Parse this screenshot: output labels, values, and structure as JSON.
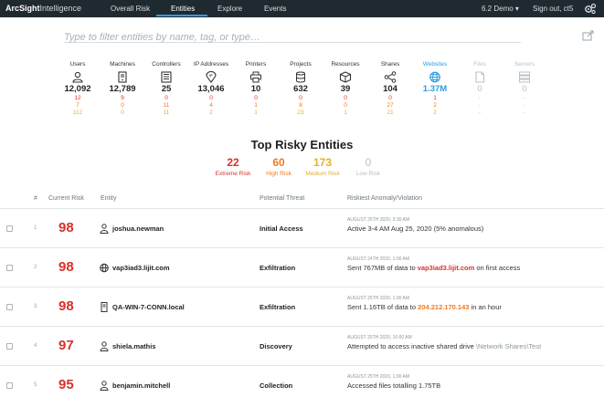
{
  "app": {
    "brand": "ArcSight",
    "brand_suffix": "Intelligence"
  },
  "nav": {
    "items": [
      {
        "label": "Overall Risk"
      },
      {
        "label": "Entities"
      },
      {
        "label": "Explore"
      },
      {
        "label": "Events"
      }
    ]
  },
  "topright": {
    "demo": "6.2 Demo ▾",
    "signout": "Sign out, ct5"
  },
  "filter": {
    "placeholder": "Type to filter entities by name, tag, or type…"
  },
  "categories": [
    {
      "name": "Users",
      "icon": "user-icon",
      "count": "12,092",
      "extreme": "12",
      "high": "7",
      "medium": "112"
    },
    {
      "name": "Machines",
      "icon": "server-icon",
      "count": "12,789",
      "extreme": "9",
      "high": "0",
      "medium": "0"
    },
    {
      "name": "Controllers",
      "icon": "controller-icon",
      "count": "25",
      "extreme": "0",
      "high": "11",
      "medium": "11"
    },
    {
      "name": "IP Addresses",
      "icon": "ip-pin-icon",
      "count": "13,046",
      "extreme": "0",
      "high": "4",
      "medium": "2"
    },
    {
      "name": "Printers",
      "icon": "printer-icon",
      "count": "10",
      "extreme": "0",
      "high": "1",
      "medium": "1"
    },
    {
      "name": "Projects",
      "icon": "database-icon",
      "count": "632",
      "extreme": "0",
      "high": "8",
      "medium": "23"
    },
    {
      "name": "Resources",
      "icon": "cube-icon",
      "count": "39",
      "extreme": "0",
      "high": "0",
      "medium": "1"
    },
    {
      "name": "Shares",
      "icon": "share-icon",
      "count": "104",
      "extreme": "0",
      "high": "27",
      "medium": "21"
    },
    {
      "name": "Websites",
      "icon": "globe-icon",
      "count": "1.37M",
      "extreme": "1",
      "high": "2",
      "medium": "2"
    },
    {
      "name": "Files",
      "icon": "file-icon",
      "count": "0",
      "extreme": "-",
      "high": "-",
      "medium": "-"
    },
    {
      "name": "Servers",
      "icon": "servers-icon",
      "count": "0",
      "extreme": "-",
      "high": "-",
      "medium": "-"
    }
  ],
  "top_risky": {
    "title": "Top Risky Entities",
    "severities": [
      {
        "count": "22",
        "label": "Extreme Risk",
        "color": "#d8322b"
      },
      {
        "count": "60",
        "label": "High Risk",
        "color": "#ef7a23"
      },
      {
        "count": "173",
        "label": "Medium Risk",
        "color": "#e5b12a"
      },
      {
        "count": "0",
        "label": "Low Risk",
        "color": "#b8c2c8"
      }
    ]
  },
  "table": {
    "headers": {
      "index": "#",
      "risk": "Current Risk",
      "entity": "Entity",
      "threat": "Potential Threat",
      "anomaly": "Riskiest Anomaly/Violation"
    },
    "rows": [
      {
        "index": "1",
        "risk": "98",
        "entity_icon": "user-icon",
        "entity": "joshua.newman",
        "threat": "Initial Access",
        "date": "AUGUST 25TH 2020, 3:30 AM",
        "desc_pre": "Active 3-4 AM Aug 25, 2020 (5% anomalous)",
        "desc_hl": "",
        "desc_post": ""
      },
      {
        "index": "2",
        "risk": "98",
        "entity_icon": "globe-icon",
        "entity": "vap3iad3.lijit.com",
        "threat": "Exfiltration",
        "date": "AUGUST 24TH 2020, 1:00 AM",
        "desc_pre": "Sent 767MB of data to ",
        "desc_hl": "vap3iad3.lijit.com",
        "desc_post": " on first access"
      },
      {
        "index": "3",
        "risk": "98",
        "entity_icon": "server-icon",
        "entity": "QA-WIN-7-CONN.local",
        "threat": "Exfiltration",
        "date": "AUGUST 25TH 2020, 1:00 AM",
        "desc_pre": "Sent 1.16TB of data to ",
        "desc_hl": "204.212.170.143",
        "desc_post": " in an hour"
      },
      {
        "index": "4",
        "risk": "97",
        "entity_icon": "user-icon",
        "entity": "shiela.mathis",
        "threat": "Discovery",
        "date": "AUGUST 25TH 2020, 10:00 AM",
        "desc_pre": "Attempted to access inactive shared drive ",
        "desc_hl": "\\Network Shares\\Test",
        "desc_post": ""
      },
      {
        "index": "5",
        "risk": "95",
        "entity_icon": "user-icon",
        "entity": "benjamin.mitchell",
        "threat": "Collection",
        "date": "AUGUST 25TH 2020, 1:00 AM",
        "desc_pre": "Accessed files totalling 1.75TB",
        "desc_hl": "",
        "desc_post": ""
      }
    ]
  }
}
